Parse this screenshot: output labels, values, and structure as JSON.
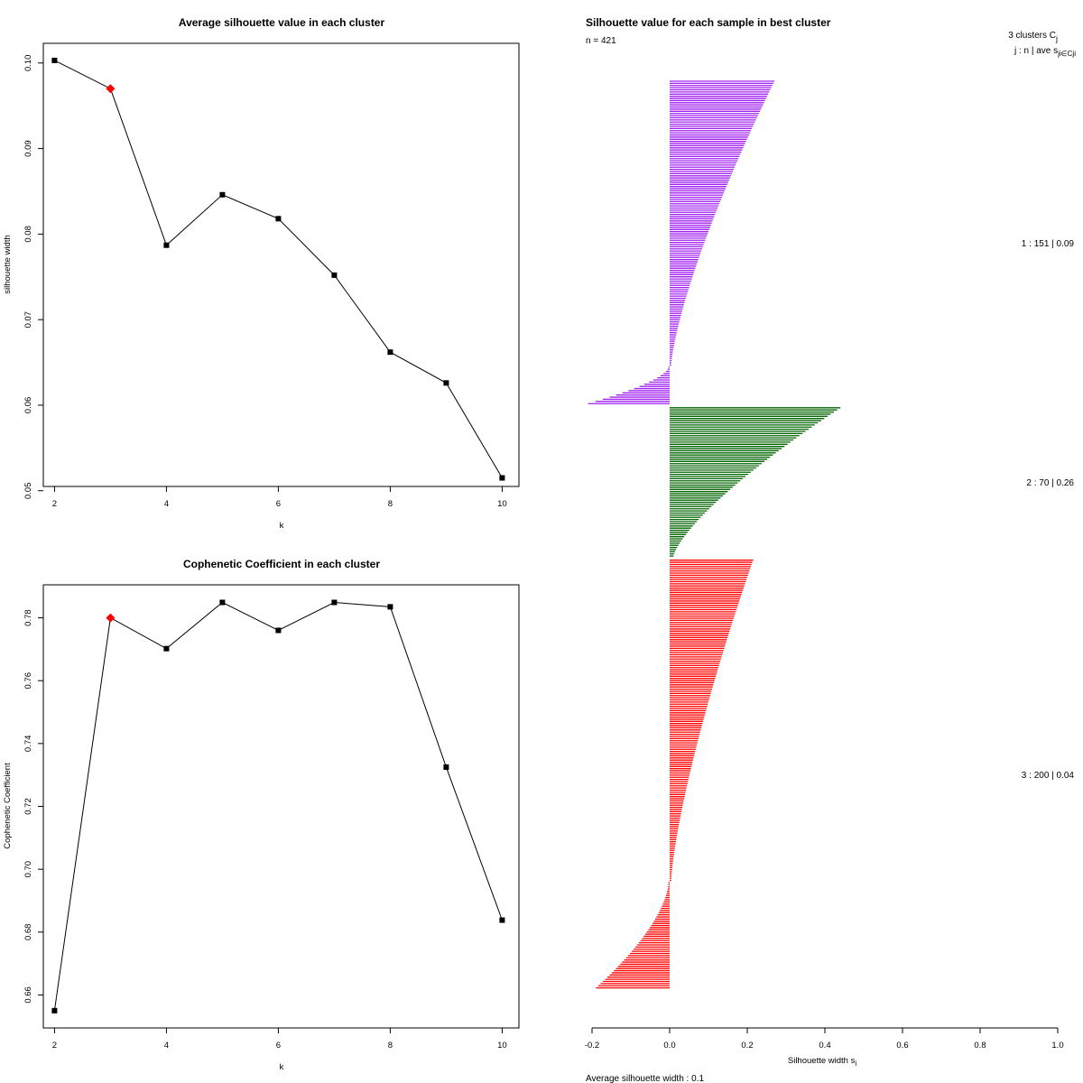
{
  "chart_data": [
    {
      "type": "line",
      "title": "Average silhouette value in each cluster",
      "xlabel": "k",
      "ylabel": "silhouette width",
      "x": [
        2,
        3,
        4,
        5,
        6,
        7,
        8,
        9,
        10
      ],
      "y": [
        0.1003,
        0.097,
        0.0787,
        0.0846,
        0.0818,
        0.0752,
        0.0662,
        0.0626,
        0.0515
      ],
      "highlight": {
        "x": 3,
        "y": 0.097,
        "color": "#ff0000",
        "marker": "diamond"
      },
      "xticks": [
        2,
        4,
        6,
        8,
        10
      ],
      "yticks": [
        0.05,
        0.06,
        0.07,
        0.08,
        0.09,
        0.1
      ],
      "ytick_labels": [
        "0.05",
        "0.06",
        "0.07",
        "0.08",
        "0.09",
        "0.10"
      ],
      "xlim": [
        1.8,
        10.3
      ],
      "ylim": [
        0.0505,
        0.1023
      ]
    },
    {
      "type": "line",
      "title": "Cophenetic Coefficient in each cluster",
      "xlabel": "k",
      "ylabel": "Cophenetic Coefficient",
      "x": [
        2,
        3,
        4,
        5,
        6,
        7,
        8,
        9,
        10
      ],
      "y": [
        0.655,
        0.78,
        0.7702,
        0.7849,
        0.776,
        0.7849,
        0.7835,
        0.7325,
        0.6838
      ],
      "highlight": {
        "x": 3,
        "y": 0.78,
        "color": "#ff0000",
        "marker": "diamond"
      },
      "xticks": [
        2,
        4,
        6,
        8,
        10
      ],
      "yticks": [
        0.66,
        0.68,
        0.7,
        0.72,
        0.74,
        0.76,
        0.78
      ],
      "ytick_labels": [
        "0.66",
        "0.68",
        "0.70",
        "0.72",
        "0.74",
        "0.76",
        "0.78"
      ],
      "xlim": [
        1.8,
        10.3
      ],
      "ylim": [
        0.6495,
        0.7905
      ]
    },
    {
      "type": "bar",
      "orientation": "horizontal",
      "title": "Silhouette value for each sample in best cluster",
      "n_label": "n = 421",
      "header": "3  clusters  C",
      "header_sub": "j",
      "legend_header": "j :  n  | ave     s",
      "legend_header_subs": [
        "j",
        "i∈Cj",
        "i"
      ],
      "xlabel": "Silhouette width s",
      "xlabel_sub": "i",
      "xticks": [
        -0.2,
        0.0,
        0.2,
        0.4,
        0.6,
        0.8,
        1.0
      ],
      "xtick_labels": [
        "-0.2",
        "0.0",
        "0.2",
        "0.4",
        "0.6",
        "0.8",
        "1.0"
      ],
      "xlim": [
        -0.2,
        1.0
      ],
      "average_label": "Average silhouette width :  0.1",
      "average_silhouette": 0.1,
      "clusters": [
        {
          "j": 1,
          "n": 151,
          "ave": 0.09,
          "ave_label": "0.09",
          "color": "#a020f0",
          "legend_text": "1 :   151  |  0.09",
          "bars": 151,
          "max": 0.27,
          "positive_end": 0.004,
          "min": -0.21,
          "negative_count": 18
        },
        {
          "j": 2,
          "n": 70,
          "ave": 0.26,
          "ave_label": "0.26",
          "color": "#006400",
          "legend_text": "2 :   70  |  0.26",
          "bars": 70,
          "max": 0.44,
          "positive_end": 0.01,
          "min": 0.01,
          "negative_count": 0
        },
        {
          "j": 3,
          "n": 200,
          "ave": 0.04,
          "ave_label": "0.04",
          "color": "#ff0000",
          "legend_text": "3 :   200  |  0.04",
          "bars": 200,
          "max": 0.215,
          "positive_end": 0.004,
          "min": -0.19,
          "negative_count": 50
        }
      ]
    }
  ]
}
